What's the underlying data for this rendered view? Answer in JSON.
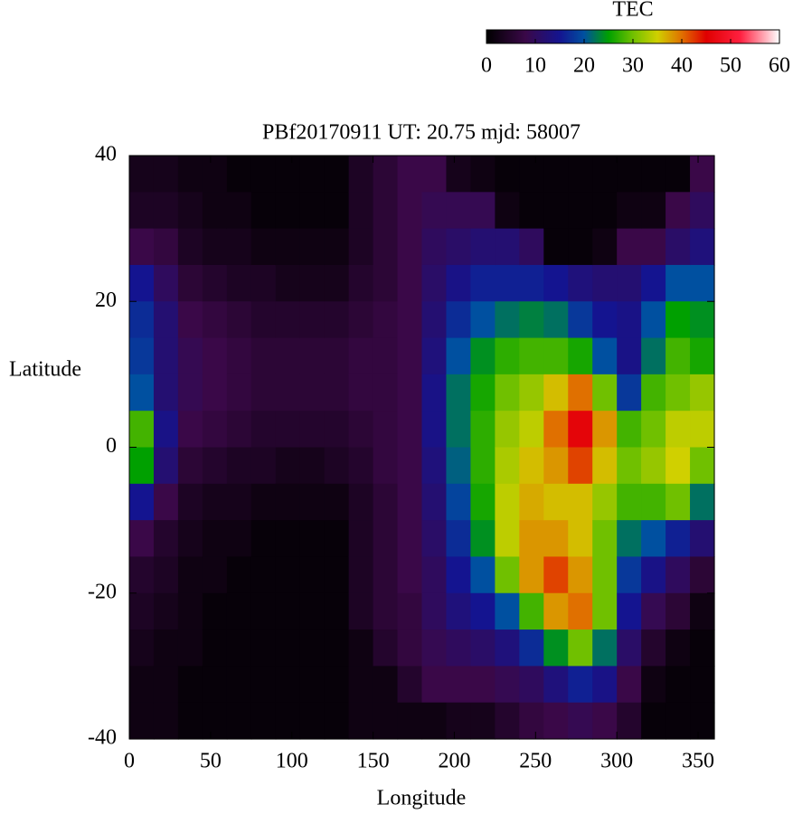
{
  "chart_data": {
    "type": "heatmap",
    "title": "PBf20170911  UT: 20.75  mjd: 58007",
    "xlabel": "Longitude",
    "ylabel": "Latitude",
    "colorbar_label": "TEC",
    "xlim": [
      0,
      360
    ],
    "xticks": [
      0,
      50,
      100,
      150,
      200,
      250,
      300,
      350
    ],
    "ylim": [
      -40,
      40
    ],
    "yticks": [
      -40,
      -20,
      0,
      20,
      40
    ],
    "clim": [
      0,
      60
    ],
    "cticks": [
      0,
      10,
      20,
      30,
      40,
      50,
      60
    ],
    "colorscale": [
      [
        0,
        "#000000"
      ],
      [
        8,
        "#3a0848"
      ],
      [
        15,
        "#141490"
      ],
      [
        20,
        "#0050a0"
      ],
      [
        25,
        "#00a000"
      ],
      [
        30,
        "#70c000"
      ],
      [
        35,
        "#d0d000"
      ],
      [
        40,
        "#e07000"
      ],
      [
        45,
        "#e00000"
      ],
      [
        52,
        "#ff2040"
      ],
      [
        60,
        "#ffffff"
      ]
    ],
    "x": [
      7.5,
      22.5,
      37.5,
      52.5,
      67.5,
      82.5,
      97.5,
      112.5,
      127.5,
      142.5,
      157.5,
      172.5,
      187.5,
      202.5,
      217.5,
      232.5,
      247.5,
      262.5,
      277.5,
      292.5,
      307.5,
      322.5,
      337.5,
      352.5
    ],
    "y": [
      37.5,
      32.5,
      27.5,
      22.5,
      17.5,
      12.5,
      7.5,
      2.5,
      -2.5,
      -7.5,
      -12.5,
      -17.5,
      -22.5,
      -27.5,
      -32.5,
      -37.5
    ],
    "values": [
      [
        3,
        4,
        8,
        15,
        17,
        18,
        20,
        28,
        25,
        15,
        8,
        5,
        4,
        3,
        2,
        2
      ],
      [
        3,
        4,
        7,
        10,
        12,
        12,
        12,
        14,
        12,
        8,
        5,
        4,
        3,
        2,
        2,
        2
      ],
      [
        2,
        3,
        4,
        6,
        8,
        9,
        9,
        8,
        6,
        4,
        3,
        2,
        2,
        2,
        1,
        1
      ],
      [
        2,
        2,
        3,
        5,
        7,
        8,
        8,
        7,
        5,
        3,
        2,
        2,
        1,
        1,
        1,
        1
      ],
      [
        1,
        2,
        3,
        4,
        6,
        7,
        7,
        6,
        4,
        3,
        2,
        1,
        1,
        1,
        1,
        1
      ],
      [
        1,
        1,
        2,
        4,
        5,
        6,
        6,
        5,
        4,
        2,
        1,
        1,
        1,
        1,
        1,
        1
      ],
      [
        1,
        1,
        2,
        3,
        5,
        6,
        6,
        5,
        3,
        2,
        1,
        1,
        1,
        1,
        1,
        1
      ],
      [
        1,
        1,
        2,
        3,
        5,
        6,
        6,
        5,
        3,
        2,
        1,
        1,
        1,
        1,
        1,
        1
      ],
      [
        1,
        1,
        2,
        3,
        5,
        6,
        6,
        5,
        4,
        2,
        1,
        1,
        1,
        1,
        1,
        1
      ],
      [
        4,
        4,
        4,
        5,
        6,
        7,
        7,
        6,
        5,
        4,
        4,
        4,
        4,
        2,
        2,
        2
      ],
      [
        6,
        6,
        6,
        6,
        7,
        7,
        7,
        7,
        7,
        6,
        6,
        6,
        6,
        5,
        2,
        2
      ],
      [
        8,
        8,
        8,
        8,
        8,
        8,
        8,
        8,
        8,
        8,
        8,
        8,
        7,
        7,
        5,
        2
      ],
      [
        8,
        9,
        10,
        11,
        12,
        13,
        14,
        14,
        13,
        12,
        11,
        10,
        10,
        9,
        8,
        2
      ],
      [
        3,
        9,
        11,
        14,
        17,
        20,
        22,
        22,
        21,
        19,
        17,
        15,
        13,
        10,
        8,
        3
      ],
      [
        2,
        9,
        12,
        16,
        20,
        24,
        26,
        27,
        27,
        26,
        24,
        20,
        15,
        11,
        8,
        3
      ],
      [
        1,
        2,
        12,
        16,
        22,
        27,
        30,
        32,
        33,
        34,
        34,
        30,
        20,
        13,
        9,
        5
      ],
      [
        1,
        1,
        10,
        16,
        23,
        28,
        32,
        34,
        36,
        37,
        38,
        38,
        28,
        17,
        10,
        7
      ],
      [
        1,
        1,
        1,
        15,
        22,
        28,
        36,
        40,
        38,
        36,
        38,
        42,
        38,
        24,
        13,
        8
      ],
      [
        1,
        1,
        1,
        13,
        18,
        26,
        40,
        46,
        42,
        36,
        36,
        38,
        40,
        30,
        16,
        9
      ],
      [
        1,
        1,
        2,
        12,
        15,
        20,
        30,
        38,
        36,
        32,
        30,
        30,
        30,
        22,
        14,
        8
      ],
      [
        1,
        2,
        8,
        12,
        14,
        14,
        18,
        28,
        30,
        28,
        22,
        18,
        15,
        11,
        8,
        5
      ],
      [
        1,
        2,
        8,
        15,
        20,
        22,
        28,
        30,
        32,
        28,
        20,
        14,
        9,
        5,
        2,
        1
      ],
      [
        1,
        8,
        11,
        20,
        25,
        28,
        30,
        34,
        35,
        30,
        16,
        10,
        6,
        2,
        1,
        1
      ],
      [
        8,
        10,
        13,
        20,
        24,
        26,
        32,
        34,
        30,
        22,
        12,
        6,
        2,
        1,
        1,
        1
      ]
    ]
  }
}
